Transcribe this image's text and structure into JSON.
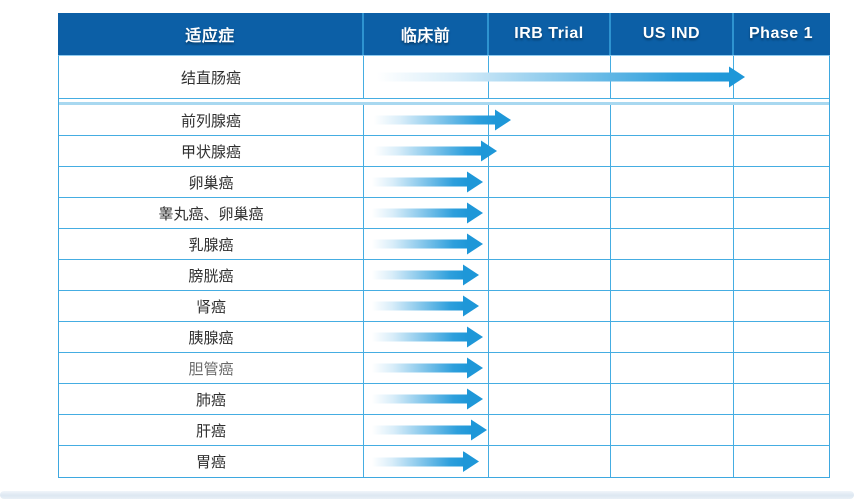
{
  "table": {
    "columns": [
      "适应症",
      "临床前",
      "IRB Trial",
      "US IND",
      "Phase 1"
    ],
    "rows": [
      {
        "indication": "结直肠癌",
        "stage_reached": "US IND",
        "arrow_start": 318,
        "arrow_end": 686,
        "muted": false
      },
      {
        "indication": "前列腺癌",
        "stage_reached": "IRB Trial",
        "arrow_start": 315,
        "arrow_end": 452,
        "muted": false
      },
      {
        "indication": "甲状腺癌",
        "stage_reached": "IRB Trial",
        "arrow_start": 315,
        "arrow_end": 438,
        "muted": false
      },
      {
        "indication": "卵巢癌",
        "stage_reached": "临床前",
        "arrow_start": 313,
        "arrow_end": 424,
        "muted": false
      },
      {
        "indication": "睾丸癌、卵巢癌",
        "stage_reached": "临床前",
        "arrow_start": 313,
        "arrow_end": 424,
        "muted": false
      },
      {
        "indication": "乳腺癌",
        "stage_reached": "临床前",
        "arrow_start": 313,
        "arrow_end": 424,
        "muted": false
      },
      {
        "indication": "膀胱癌",
        "stage_reached": "临床前",
        "arrow_start": 313,
        "arrow_end": 420,
        "muted": false
      },
      {
        "indication": "肾癌",
        "stage_reached": "临床前",
        "arrow_start": 313,
        "arrow_end": 420,
        "muted": false
      },
      {
        "indication": "胰腺癌",
        "stage_reached": "临床前",
        "arrow_start": 313,
        "arrow_end": 424,
        "muted": false
      },
      {
        "indication": "胆管癌",
        "stage_reached": "临床前",
        "arrow_start": 313,
        "arrow_end": 424,
        "muted": true
      },
      {
        "indication": "肺癌",
        "stage_reached": "临床前",
        "arrow_start": 313,
        "arrow_end": 424,
        "muted": false
      },
      {
        "indication": "肝癌",
        "stage_reached": "临床前",
        "arrow_start": 313,
        "arrow_end": 428,
        "muted": false
      },
      {
        "indication": "胃癌",
        "stage_reached": "临床前",
        "arrow_start": 313,
        "arrow_end": 420,
        "muted": false
      }
    ],
    "colors": {
      "header_bg": "#0c5fa6",
      "header_divider": "#2e93d0",
      "grid_border": "#45ade2",
      "section_divider": "#a8d8f0",
      "arrow_blue": "#1e97d8",
      "text_dark": "#303030",
      "text_muted": "#6a6a6a"
    }
  }
}
